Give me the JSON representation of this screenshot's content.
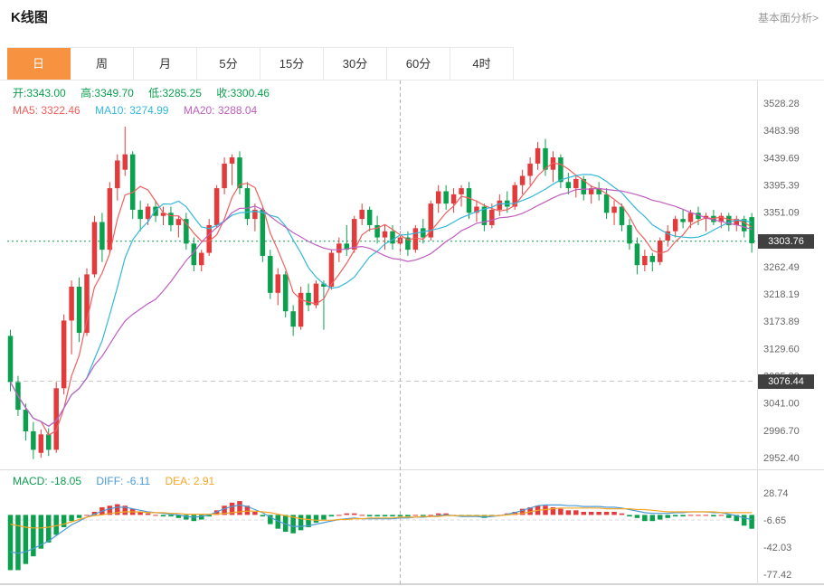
{
  "header": {
    "title": "K线图",
    "link_label": "基本面分析>"
  },
  "tabs": {
    "active_index": 0,
    "items": [
      {
        "label": "日"
      },
      {
        "label": "周"
      },
      {
        "label": "月"
      },
      {
        "label": "5分"
      },
      {
        "label": "15分"
      },
      {
        "label": "30分"
      },
      {
        "label": "60分"
      },
      {
        "label": "4时"
      }
    ]
  },
  "legend": {
    "ohlc": [
      {
        "label": "开:",
        "value": "3343.00"
      },
      {
        "label": "高:",
        "value": "3349.70"
      },
      {
        "label": "低:",
        "value": "3285.25"
      },
      {
        "label": "收:",
        "value": "3300.46"
      }
    ],
    "ma": [
      {
        "label": "MA5: ",
        "value": "3322.46"
      },
      {
        "label": "MA10: ",
        "value": "3274.99"
      },
      {
        "label": "MA20: ",
        "value": "3288.04"
      }
    ]
  },
  "macd_legend": {
    "items": [
      {
        "label": "MACD: ",
        "value": "-18.05"
      },
      {
        "label": "DIFF: ",
        "value": "-6.11"
      },
      {
        "label": "DEA: ",
        "value": "2.91"
      }
    ]
  },
  "axis": {
    "current_badge": "3303.76",
    "reference_badge": "3076.44"
  },
  "chart_data": {
    "type": "candlestick",
    "title": "K线图",
    "interval": "日",
    "ohlc_legend": {
      "open": 3343.0,
      "high": 3349.7,
      "low": 3285.25,
      "close": 3300.46
    },
    "y_axis_ticks": [
      "3528.28",
      "3483.98",
      "3439.69",
      "3395.39",
      "3351.09",
      "3306.79",
      "3262.49",
      "3218.19",
      "3173.89",
      "3129.60",
      "3085.30",
      "3041.00",
      "2996.70",
      "2952.40"
    ],
    "macd_axis_ticks": [
      "28.74",
      "-6.65",
      "-42.03",
      "-77.42"
    ],
    "current_price": 3303.76,
    "reference_price": 3076.44,
    "crosshair_index": 51,
    "ma_periods": [
      5,
      10,
      20
    ],
    "candles": [
      [
        3150,
        3160,
        3060,
        3075
      ],
      [
        3075,
        3085,
        3020,
        3030
      ],
      [
        3030,
        3040,
        2980,
        2995
      ],
      [
        2995,
        3010,
        2950,
        2965
      ],
      [
        2960,
        2998,
        2952,
        2990
      ],
      [
        2990,
        3000,
        2955,
        2965
      ],
      [
        2965,
        3075,
        2960,
        3065
      ],
      [
        3065,
        3185,
        3055,
        3175
      ],
      [
        3175,
        3240,
        3120,
        3230
      ],
      [
        3230,
        3245,
        3140,
        3155
      ],
      [
        3155,
        3260,
        3150,
        3250
      ],
      [
        3250,
        3345,
        3245,
        3335
      ],
      [
        3335,
        3350,
        3270,
        3290
      ],
      [
        3290,
        3400,
        3285,
        3390
      ],
      [
        3390,
        3445,
        3370,
        3435
      ],
      [
        3420,
        3490,
        3410,
        3445
      ],
      [
        3445,
        3450,
        3340,
        3355
      ],
      [
        3355,
        3370,
        3320,
        3340
      ],
      [
        3340,
        3365,
        3330,
        3360
      ],
      [
        3360,
        3370,
        3335,
        3345
      ],
      [
        3345,
        3360,
        3330,
        3350
      ],
      [
        3350,
        3360,
        3320,
        3330
      ],
      [
        3330,
        3345,
        3310,
        3340
      ],
      [
        3340,
        3350,
        3290,
        3300
      ],
      [
        3300,
        3310,
        3255,
        3265
      ],
      [
        3265,
        3290,
        3255,
        3285
      ],
      [
        3285,
        3340,
        3280,
        3330
      ],
      [
        3330,
        3395,
        3325,
        3390
      ],
      [
        3390,
        3440,
        3380,
        3430
      ],
      [
        3430,
        3445,
        3395,
        3440
      ],
      [
        3440,
        3450,
        3380,
        3390
      ],
      [
        3390,
        3400,
        3330,
        3340
      ],
      [
        3340,
        3365,
        3320,
        3355
      ],
      [
        3355,
        3360,
        3270,
        3280
      ],
      [
        3280,
        3290,
        3210,
        3220
      ],
      [
        3220,
        3260,
        3200,
        3250
      ],
      [
        3250,
        3255,
        3180,
        3190
      ],
      [
        3190,
        3200,
        3150,
        3165
      ],
      [
        3165,
        3230,
        3160,
        3220
      ],
      [
        3220,
        3235,
        3190,
        3200
      ],
      [
        3200,
        3240,
        3195,
        3235
      ],
      [
        3235,
        3240,
        3160,
        3230
      ],
      [
        3230,
        3290,
        3225,
        3285
      ],
      [
        3285,
        3310,
        3270,
        3300
      ],
      [
        3300,
        3330,
        3280,
        3290
      ],
      [
        3290,
        3345,
        3285,
        3340
      ],
      [
        3340,
        3365,
        3330,
        3355
      ],
      [
        3355,
        3360,
        3320,
        3330
      ],
      [
        3330,
        3345,
        3300,
        3310
      ],
      [
        3310,
        3330,
        3290,
        3320
      ],
      [
        3320,
        3330,
        3290,
        3300
      ],
      [
        3300,
        3320,
        3285,
        3310
      ],
      [
        3310,
        3320,
        3280,
        3290
      ],
      [
        3290,
        3330,
        3285,
        3325
      ],
      [
        3325,
        3340,
        3300,
        3310
      ],
      [
        3310,
        3370,
        3305,
        3365
      ],
      [
        3365,
        3395,
        3350,
        3385
      ],
      [
        3385,
        3395,
        3355,
        3365
      ],
      [
        3365,
        3390,
        3350,
        3380
      ],
      [
        3380,
        3395,
        3360,
        3390
      ],
      [
        3390,
        3400,
        3340,
        3350
      ],
      [
        3350,
        3370,
        3335,
        3360
      ],
      [
        3360,
        3365,
        3320,
        3330
      ],
      [
        3330,
        3365,
        3325,
        3355
      ],
      [
        3355,
        3380,
        3345,
        3370
      ],
      [
        3370,
        3385,
        3350,
        3360
      ],
      [
        3360,
        3400,
        3355,
        3395
      ],
      [
        3395,
        3420,
        3380,
        3410
      ],
      [
        3410,
        3440,
        3395,
        3430
      ],
      [
        3430,
        3465,
        3420,
        3455
      ],
      [
        3455,
        3470,
        3410,
        3420
      ],
      [
        3420,
        3450,
        3400,
        3440
      ],
      [
        3440,
        3445,
        3390,
        3400
      ],
      [
        3400,
        3415,
        3380,
        3390
      ],
      [
        3390,
        3410,
        3375,
        3405
      ],
      [
        3405,
        3410,
        3370,
        3380
      ],
      [
        3380,
        3395,
        3365,
        3390
      ],
      [
        3390,
        3400,
        3370,
        3380
      ],
      [
        3380,
        3390,
        3340,
        3350
      ],
      [
        3350,
        3370,
        3330,
        3360
      ],
      [
        3360,
        3365,
        3320,
        3330
      ],
      [
        3330,
        3340,
        3290,
        3300
      ],
      [
        3300,
        3310,
        3250,
        3265
      ],
      [
        3265,
        3290,
        3255,
        3280
      ],
      [
        3280,
        3285,
        3255,
        3270
      ],
      [
        3270,
        3310,
        3265,
        3305
      ],
      [
        3305,
        3330,
        3295,
        3320
      ],
      [
        3320,
        3345,
        3310,
        3340
      ],
      [
        3340,
        3355,
        3325,
        3335
      ],
      [
        3335,
        3355,
        3325,
        3350
      ],
      [
        3350,
        3360,
        3330,
        3340
      ],
      [
        3340,
        3350,
        3320,
        3345
      ],
      [
        3345,
        3355,
        3330,
        3335
      ],
      [
        3335,
        3350,
        3325,
        3345
      ],
      [
        3345,
        3350,
        3320,
        3330
      ],
      [
        3330,
        3345,
        3320,
        3340
      ],
      [
        3340,
        3345,
        3310,
        3320
      ],
      [
        3343,
        3349.7,
        3285.25,
        3300.46
      ]
    ],
    "indicator": {
      "macd_formula": "2*(diff-dea)",
      "macd_last": -18.05,
      "diff_last": -6.11,
      "dea_last": 2.91,
      "diff": [
        -48,
        -50,
        -48,
        -44,
        -39,
        -34,
        -27,
        -20,
        -13,
        -8,
        -3,
        1,
        5,
        8,
        10,
        10,
        8,
        6,
        4,
        3,
        2,
        1,
        0,
        -2,
        -3,
        -2,
        0,
        4,
        8,
        11,
        13,
        11,
        7,
        3,
        -3,
        -8,
        -12,
        -15,
        -15,
        -14,
        -12,
        -10,
        -8,
        -6,
        -5,
        -4,
        -5,
        -5,
        -5,
        -5,
        -5,
        -4,
        -4,
        -3,
        -3,
        -2,
        -1,
        0,
        -1,
        -2,
        -2,
        -2,
        -3,
        -2,
        -1,
        1,
        3,
        6,
        9,
        12,
        13,
        13,
        13,
        12,
        12,
        11,
        11,
        11,
        10,
        10,
        9,
        7,
        5,
        3,
        2,
        2,
        2,
        3,
        3,
        4,
        4,
        4,
        3,
        3,
        1,
        -1,
        -4,
        -6.11
      ],
      "dea": [
        -12,
        -14,
        -16,
        -17,
        -17,
        -16,
        -14,
        -12,
        -9,
        -6,
        -3,
        -1,
        0,
        2,
        3,
        4,
        4,
        4,
        3,
        3,
        3,
        2,
        2,
        1,
        1,
        1,
        1,
        1,
        2,
        3,
        4,
        5,
        5,
        4,
        3,
        1,
        -1,
        -3,
        -5,
        -6,
        -7,
        -7,
        -7,
        -6,
        -6,
        -5,
        -5,
        -4,
        -4,
        -4,
        -4,
        -3,
        -3,
        -3,
        -2,
        -2,
        -2,
        -1,
        -1,
        -1,
        -1,
        -1,
        -1,
        -1,
        -1,
        0,
        1,
        2,
        4,
        6,
        7,
        8,
        9,
        9,
        9,
        9,
        9,
        9,
        8,
        8,
        8,
        8,
        7,
        7,
        6,
        5,
        4,
        4,
        4,
        4,
        4,
        4,
        4,
        3,
        3,
        3,
        3,
        2.91
      ]
    },
    "colors": {
      "up": "#e33b3b",
      "down": "#0aa04e",
      "ma5": "#f25e5e",
      "ma10": "#33b8d8",
      "ma20": "#c05ec0",
      "diff": "#4a9ad4",
      "dea": "#f5a623",
      "current_line": "#0aa04e",
      "tab_active": "#f79240",
      "badge_bg": "#404040"
    }
  }
}
